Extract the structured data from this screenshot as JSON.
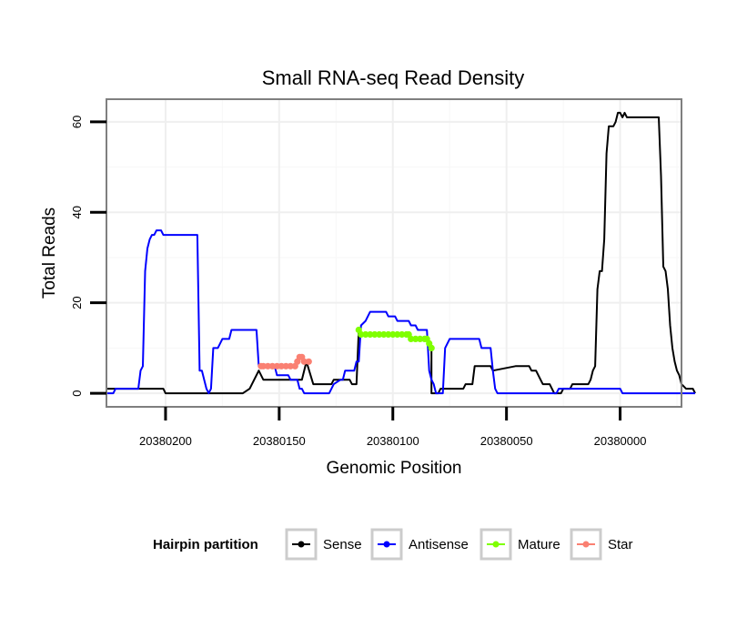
{
  "chart_data": {
    "type": "line",
    "title": "Small RNA-seq Read Density",
    "xlabel": "Genomic Position",
    "ylabel": "Total Reads",
    "xlim": [
      20380226,
      20379973
    ],
    "x_reversed": true,
    "ylim": [
      -3,
      65
    ],
    "x_ticks": [
      20380200,
      20380150,
      20380100,
      20380050,
      20380000
    ],
    "x_tick_labels": [
      "20380200",
      "20380150",
      "20380100",
      "20380050",
      "20380000"
    ],
    "y_ticks": [
      0,
      20,
      40,
      60
    ],
    "y_tick_labels": [
      "0",
      "20",
      "40",
      "60"
    ],
    "grid": true,
    "legend": {
      "title": "Hairpin partition",
      "position": "bottom",
      "entries": [
        "Sense",
        "Antisense",
        "Mature",
        "Star"
      ]
    },
    "series": [
      {
        "name": "Sense",
        "color": "#000000",
        "marker": false,
        "points": [
          [
            20380226,
            1
          ],
          [
            20380201,
            1
          ],
          [
            20380200,
            0
          ],
          [
            20380166,
            0
          ],
          [
            20380163,
            1
          ],
          [
            20380159,
            5
          ],
          [
            20380157,
            3
          ],
          [
            20380156,
            3
          ],
          [
            20380140,
            3
          ],
          [
            20380138,
            7
          ],
          [
            20380135,
            2
          ],
          [
            20380127,
            2
          ],
          [
            20380126,
            3
          ],
          [
            20380124,
            3
          ],
          [
            20380119,
            3
          ],
          [
            20380118,
            2
          ],
          [
            20380116,
            2
          ],
          [
            20380115,
            14
          ],
          [
            20380114,
            13
          ],
          [
            20380093,
            13
          ],
          [
            20380092,
            12
          ],
          [
            20380085,
            12
          ],
          [
            20380084,
            11
          ],
          [
            20380083,
            10
          ],
          [
            20380083,
            0
          ],
          [
            20380080,
            0
          ],
          [
            20380079,
            1
          ],
          [
            20380069,
            1
          ],
          [
            20380068,
            2
          ],
          [
            20380065,
            2
          ],
          [
            20380064,
            6
          ],
          [
            20380057,
            6
          ],
          [
            20380056,
            5
          ],
          [
            20380046,
            6
          ],
          [
            20380040,
            6
          ],
          [
            20380039,
            5
          ],
          [
            20380037,
            5
          ],
          [
            20380036,
            4
          ],
          [
            20380035,
            3
          ],
          [
            20380034,
            2
          ],
          [
            20380031,
            2
          ],
          [
            20380030,
            1
          ],
          [
            20380029,
            0
          ],
          [
            20380026,
            0
          ],
          [
            20380025,
            1
          ],
          [
            20380022,
            1
          ],
          [
            20380021,
            2
          ],
          [
            20380014,
            2
          ],
          [
            20380013,
            3
          ],
          [
            20380012,
            5
          ],
          [
            20380011,
            6
          ],
          [
            20380010,
            23
          ],
          [
            20380009,
            27
          ],
          [
            20380008,
            27
          ],
          [
            20380007,
            34
          ],
          [
            20380006,
            53
          ],
          [
            20380005,
            59
          ],
          [
            20380003,
            59
          ],
          [
            20380002,
            60
          ],
          [
            20380001,
            62
          ],
          [
            20380000,
            62
          ],
          [
            20379999,
            61
          ],
          [
            20379998,
            62
          ],
          [
            20379997,
            61
          ],
          [
            20379983,
            61
          ],
          [
            20379982,
            48
          ],
          [
            20379981,
            28
          ],
          [
            20379980,
            27
          ],
          [
            20379979,
            23
          ],
          [
            20379978,
            15
          ],
          [
            20379977,
            10
          ],
          [
            20379976,
            7
          ],
          [
            20379975,
            5
          ],
          [
            20379974,
            4
          ],
          [
            20379973,
            2
          ],
          [
            20379971,
            1
          ],
          [
            20379968,
            1
          ],
          [
            20379967,
            0
          ]
        ]
      },
      {
        "name": "Antisense",
        "color": "#0000ff",
        "marker": false,
        "points": [
          [
            20380226,
            0
          ],
          [
            20380223,
            0
          ],
          [
            20380222,
            1
          ],
          [
            20380212,
            1
          ],
          [
            20380211,
            5
          ],
          [
            20380210,
            6
          ],
          [
            20380209,
            27
          ],
          [
            20380208,
            32
          ],
          [
            20380207,
            34
          ],
          [
            20380206,
            35
          ],
          [
            20380205,
            35
          ],
          [
            20380204,
            36
          ],
          [
            20380202,
            36
          ],
          [
            20380201,
            35
          ],
          [
            20380186,
            35
          ],
          [
            20380185,
            5
          ],
          [
            20380184,
            5
          ],
          [
            20380183,
            3
          ],
          [
            20380182,
            1
          ],
          [
            20380181,
            0
          ],
          [
            20380180,
            1
          ],
          [
            20380179,
            10
          ],
          [
            20380177,
            10
          ],
          [
            20380176,
            11
          ],
          [
            20380175,
            12
          ],
          [
            20380172,
            12
          ],
          [
            20380171,
            14
          ],
          [
            20380160,
            14
          ],
          [
            20380159,
            6
          ],
          [
            20380152,
            6
          ],
          [
            20380151,
            4
          ],
          [
            20380146,
            4
          ],
          [
            20380145,
            3
          ],
          [
            20380142,
            3
          ],
          [
            20380141,
            1
          ],
          [
            20380140,
            1
          ],
          [
            20380139,
            0
          ],
          [
            20380128,
            0
          ],
          [
            20380126,
            2
          ],
          [
            20380123,
            3
          ],
          [
            20380122,
            3
          ],
          [
            20380121,
            5
          ],
          [
            20380117,
            5
          ],
          [
            20380116,
            7
          ],
          [
            20380115,
            7
          ],
          [
            20380114,
            15
          ],
          [
            20380112,
            16
          ],
          [
            20380111,
            17
          ],
          [
            20380110,
            18
          ],
          [
            20380103,
            18
          ],
          [
            20380102,
            17
          ],
          [
            20380099,
            17
          ],
          [
            20380098,
            16
          ],
          [
            20380093,
            16
          ],
          [
            20380092,
            15
          ],
          [
            20380090,
            15
          ],
          [
            20380089,
            14
          ],
          [
            20380085,
            14
          ],
          [
            20380084,
            5
          ],
          [
            20380083,
            3
          ],
          [
            20380082,
            2
          ],
          [
            20380081,
            0
          ],
          [
            20380078,
            0
          ],
          [
            20380077,
            10
          ],
          [
            20380076,
            11
          ],
          [
            20380075,
            12
          ],
          [
            20380062,
            12
          ],
          [
            20380061,
            10
          ],
          [
            20380057,
            10
          ],
          [
            20380056,
            5
          ],
          [
            20380055,
            1
          ],
          [
            20380054,
            0
          ],
          [
            20380028,
            0
          ],
          [
            20380027,
            1
          ],
          [
            20380000,
            1
          ],
          [
            20379999,
            0
          ],
          [
            20379967,
            0
          ]
        ]
      },
      {
        "name": "Mature",
        "color": "#7fff00",
        "marker": true,
        "points": [
          [
            20380115,
            14
          ],
          [
            20380114,
            13
          ],
          [
            20380112,
            13
          ],
          [
            20380110,
            13
          ],
          [
            20380108,
            13
          ],
          [
            20380106,
            13
          ],
          [
            20380104,
            13
          ],
          [
            20380102,
            13
          ],
          [
            20380100,
            13
          ],
          [
            20380098,
            13
          ],
          [
            20380096,
            13
          ],
          [
            20380094,
            13
          ],
          [
            20380093,
            13
          ],
          [
            20380092,
            12
          ],
          [
            20380090,
            12
          ],
          [
            20380088,
            12
          ],
          [
            20380086,
            12
          ],
          [
            20380085,
            12
          ],
          [
            20380084,
            11
          ],
          [
            20380083,
            10
          ]
        ]
      },
      {
        "name": "Star",
        "color": "#fa8072",
        "marker": true,
        "points": [
          [
            20380158,
            6
          ],
          [
            20380157,
            6
          ],
          [
            20380155,
            6
          ],
          [
            20380153,
            6
          ],
          [
            20380151,
            6
          ],
          [
            20380149,
            6
          ],
          [
            20380147,
            6
          ],
          [
            20380145,
            6
          ],
          [
            20380143,
            6
          ],
          [
            20380142,
            7
          ],
          [
            20380141,
            8
          ],
          [
            20380140,
            8
          ],
          [
            20380139,
            7
          ],
          [
            20380137,
            7
          ]
        ]
      }
    ]
  }
}
